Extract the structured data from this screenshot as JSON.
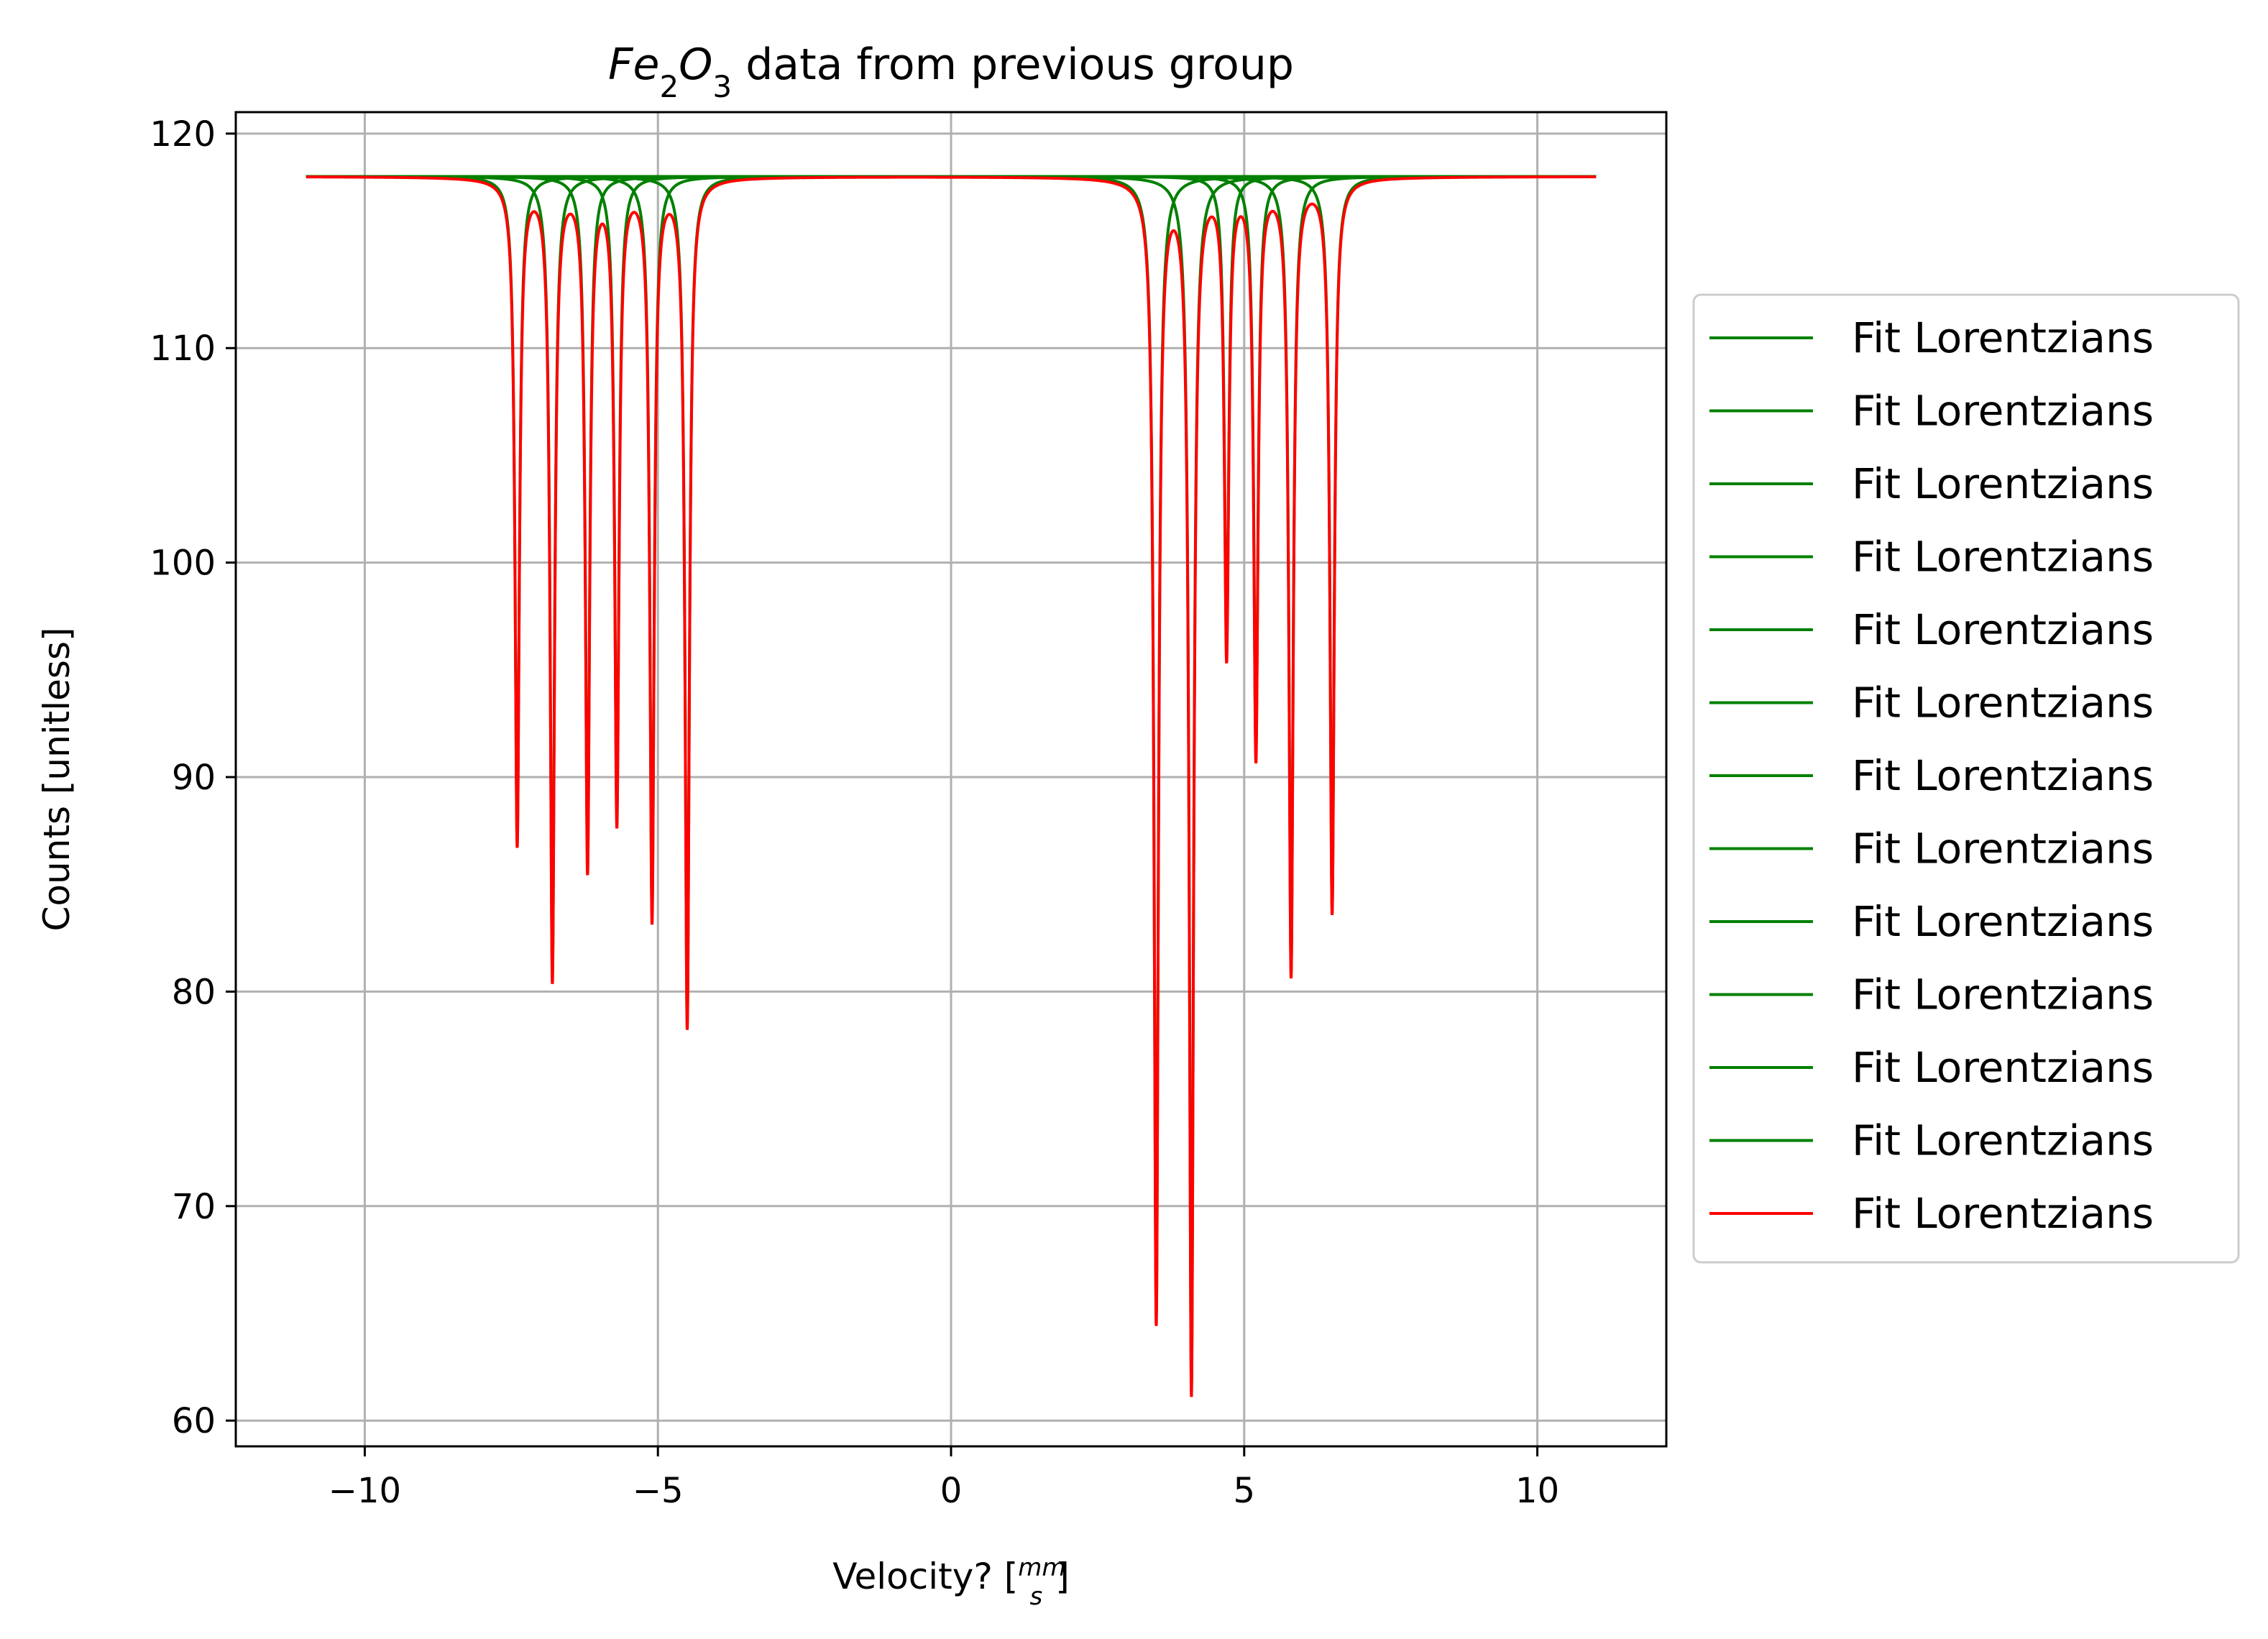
{
  "chart_data": {
    "type": "line",
    "title": "Fe₂O₃ data from previous group",
    "xlabel": "Velocity? [mm/s]",
    "ylabel": "Counts [unitless]",
    "xlim": [
      -12.2,
      12.2
    ],
    "ylim": [
      58.8,
      121
    ],
    "xticks": [
      -10,
      -5,
      0,
      5,
      10
    ],
    "xtick_labels": [
      "−10",
      "−5",
      "0",
      "5",
      "10"
    ],
    "yticks": [
      60,
      70,
      80,
      90,
      100,
      110,
      120
    ],
    "ytick_labels": [
      "60",
      "70",
      "80",
      "90",
      "100",
      "110",
      "120"
    ],
    "grid": true,
    "legend_position": "outside-right",
    "baseline": 118.0,
    "x_range": [
      -11,
      11
    ],
    "line_width_mm_s": 0.045,
    "peaks": [
      {
        "x": -7.4,
        "y": 87.0
      },
      {
        "x": -6.8,
        "y": 80.8
      },
      {
        "x": -6.2,
        "y": 86.0
      },
      {
        "x": -5.7,
        "y": 88.2
      },
      {
        "x": -5.1,
        "y": 83.6
      },
      {
        "x": -4.5,
        "y": 78.5
      },
      {
        "x": 3.5,
        "y": 64.8
      },
      {
        "x": 4.1,
        "y": 61.6
      },
      {
        "x": 4.7,
        "y": 96.0
      },
      {
        "x": 5.2,
        "y": 91.2
      },
      {
        "x": 5.8,
        "y": 81.0
      },
      {
        "x": 6.5,
        "y": 83.8
      }
    ],
    "series": [
      {
        "name": "Fit Lorentzians",
        "color": "#008000"
      },
      {
        "name": "Fit Lorentzians",
        "color": "#008000"
      },
      {
        "name": "Fit Lorentzians",
        "color": "#008000"
      },
      {
        "name": "Fit Lorentzians",
        "color": "#008000"
      },
      {
        "name": "Fit Lorentzians",
        "color": "#008000"
      },
      {
        "name": "Fit Lorentzians",
        "color": "#008000"
      },
      {
        "name": "Fit Lorentzians",
        "color": "#008000"
      },
      {
        "name": "Fit Lorentzians",
        "color": "#008000"
      },
      {
        "name": "Fit Lorentzians",
        "color": "#008000"
      },
      {
        "name": "Fit Lorentzians",
        "color": "#008000"
      },
      {
        "name": "Fit Lorentzians",
        "color": "#008000"
      },
      {
        "name": "Fit Lorentzians",
        "color": "#008000"
      },
      {
        "name": "Fit Lorentzians",
        "color": "#ff0000"
      }
    ]
  }
}
